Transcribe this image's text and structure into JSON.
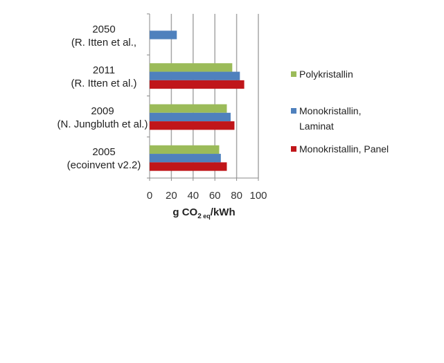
{
  "chart_data": {
    "type": "bar",
    "orientation": "horizontal",
    "categories": [
      [
        "2050",
        "(R. Itten et al.,"
      ],
      [
        "2011",
        "(R. Itten et al.)"
      ],
      [
        "2009",
        "(N. Jungbluth et al.)"
      ],
      [
        "2005",
        "(ecoinvent v2.2)"
      ]
    ],
    "series": [
      {
        "name": "Polykristallin",
        "color": "#9bbb59",
        "values": [
          null,
          76,
          71,
          64
        ]
      },
      {
        "name": "Monokristallin, Laminat",
        "name_lines": [
          "Monokristallin,",
          "Laminat"
        ],
        "color": "#4f81bd",
        "values": [
          25,
          83,
          74.5,
          65.5
        ]
      },
      {
        "name": "Monokristallin, Panel",
        "color": "#c0161a",
        "values": [
          null,
          87,
          78,
          71
        ]
      }
    ],
    "xlim": [
      0,
      100
    ],
    "xticks": [
      "0",
      "20",
      "40",
      "60",
      "80",
      "100"
    ],
    "xlabel": {
      "main": "g CO",
      "sub1": "2",
      "sub2": " eq",
      "rest": "/kWh"
    },
    "grid": true,
    "legend": "right"
  }
}
